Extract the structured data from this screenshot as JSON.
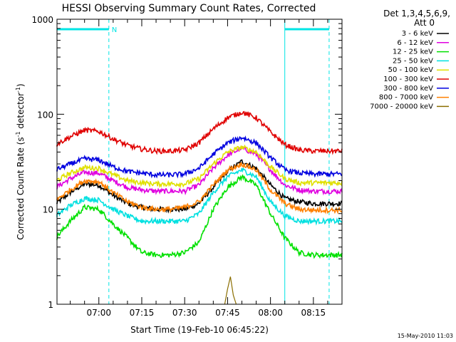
{
  "chart_data": {
    "type": "line",
    "title": "HESSI Observing Summary Count Rates, Corrected",
    "xlabel": "Start Time (19-Feb-10 06:45:22)",
    "ylabel_main": "Corrected Count Rate (s",
    "ylabel_sup1": "-1",
    "ylabel_mid": " detector",
    "ylabel_sup2": "-1",
    "ylabel_end": ")",
    "yscale": "log",
    "ylim": [
      1,
      1000
    ],
    "xlim": [
      "06:45:22",
      "08:25:00"
    ],
    "x_ticks": [
      "07:00",
      "07:15",
      "07:30",
      "07:45",
      "08:00",
      "08:15"
    ],
    "y_ticks": [
      "1",
      "10",
      "100",
      "1000"
    ],
    "grid": false,
    "legend_position": "right",
    "legend_header": [
      "Det 1,3,4,5,6,9,",
      "Att 0"
    ],
    "footer": "15-May-2010 11:03",
    "night_marker": "N",
    "night_periods": [
      {
        "start": "06:45:22",
        "end": "07:03:30"
      },
      {
        "start": "08:05:00",
        "end": "08:20:30"
      }
    ],
    "series": [
      {
        "name": "3 - 6 keV",
        "color": "#000000",
        "values": [
          [
            "06:45",
            11.5
          ],
          [
            "06:50",
            15
          ],
          [
            "06:55",
            18.5
          ],
          [
            "07:00",
            18
          ],
          [
            "07:05",
            14
          ],
          [
            "07:10",
            11.5
          ],
          [
            "07:15",
            10.5
          ],
          [
            "07:20",
            10
          ],
          [
            "07:25",
            10
          ],
          [
            "07:30",
            10
          ],
          [
            "07:35",
            11.5
          ],
          [
            "07:40",
            17
          ],
          [
            "07:45",
            25
          ],
          [
            "07:50",
            32
          ],
          [
            "07:55",
            27
          ],
          [
            "08:00",
            18
          ],
          [
            "08:05",
            13
          ],
          [
            "08:10",
            12
          ],
          [
            "08:15",
            11.5
          ],
          [
            "08:20",
            11.5
          ],
          [
            "08:25",
            11.5
          ]
        ]
      },
      {
        "name": "6 - 12 keV",
        "color": "#e000e0",
        "values": [
          [
            "06:45",
            17
          ],
          [
            "06:50",
            21
          ],
          [
            "06:55",
            24.5
          ],
          [
            "07:00",
            24
          ],
          [
            "07:05",
            20
          ],
          [
            "07:10",
            17
          ],
          [
            "07:15",
            16
          ],
          [
            "07:20",
            15.5
          ],
          [
            "07:25",
            15.5
          ],
          [
            "07:30",
            15.5
          ],
          [
            "07:35",
            18
          ],
          [
            "07:40",
            27
          ],
          [
            "07:45",
            37
          ],
          [
            "07:50",
            44
          ],
          [
            "07:55",
            38
          ],
          [
            "08:00",
            26
          ],
          [
            "08:05",
            18
          ],
          [
            "08:10",
            16
          ],
          [
            "08:15",
            15.5
          ],
          [
            "08:20",
            15.5
          ],
          [
            "08:25",
            15.5
          ]
        ]
      },
      {
        "name": "12 - 25 keV",
        "color": "#00e000",
        "values": [
          [
            "06:45",
            5
          ],
          [
            "06:50",
            7.5
          ],
          [
            "06:55",
            10.5
          ],
          [
            "07:00",
            10
          ],
          [
            "07:05",
            7
          ],
          [
            "07:10",
            5
          ],
          [
            "07:15",
            3.5
          ],
          [
            "07:20",
            3.3
          ],
          [
            "07:25",
            3.3
          ],
          [
            "07:30",
            3.5
          ],
          [
            "07:35",
            4.5
          ],
          [
            "07:40",
            10
          ],
          [
            "07:45",
            17
          ],
          [
            "07:50",
            22
          ],
          [
            "07:55",
            18
          ],
          [
            "08:00",
            9
          ],
          [
            "08:05",
            5
          ],
          [
            "08:10",
            3.5
          ],
          [
            "08:15",
            3.3
          ],
          [
            "08:20",
            3.3
          ],
          [
            "08:25",
            3.3
          ]
        ]
      },
      {
        "name": "25 - 50 keV",
        "color": "#00e0e0",
        "values": [
          [
            "06:45",
            8.5
          ],
          [
            "06:50",
            11
          ],
          [
            "06:55",
            13
          ],
          [
            "07:00",
            12.5
          ],
          [
            "07:05",
            10
          ],
          [
            "07:10",
            8.5
          ],
          [
            "07:15",
            7.5
          ],
          [
            "07:20",
            7.5
          ],
          [
            "07:25",
            7.5
          ],
          [
            "07:30",
            7.5
          ],
          [
            "07:35",
            9
          ],
          [
            "07:40",
            15
          ],
          [
            "07:45",
            22
          ],
          [
            "07:50",
            26
          ],
          [
            "07:55",
            22
          ],
          [
            "08:00",
            12
          ],
          [
            "08:05",
            8.5
          ],
          [
            "08:10",
            7.5
          ],
          [
            "08:15",
            7.5
          ],
          [
            "08:20",
            7.5
          ],
          [
            "08:25",
            7.5
          ]
        ]
      },
      {
        "name": "50 - 100 keV",
        "color": "#e0e000",
        "values": [
          [
            "06:45",
            20
          ],
          [
            "06:50",
            24
          ],
          [
            "06:55",
            27.5
          ],
          [
            "07:00",
            27
          ],
          [
            "07:05",
            23
          ],
          [
            "07:10",
            20
          ],
          [
            "07:15",
            19
          ],
          [
            "07:20",
            18.5
          ],
          [
            "07:25",
            18.5
          ],
          [
            "07:30",
            18.5
          ],
          [
            "07:35",
            21
          ],
          [
            "07:40",
            30
          ],
          [
            "07:45",
            40
          ],
          [
            "07:50",
            45
          ],
          [
            "07:55",
            40
          ],
          [
            "08:00",
            28
          ],
          [
            "08:05",
            21
          ],
          [
            "08:10",
            19
          ],
          [
            "08:15",
            19
          ],
          [
            "08:20",
            19
          ],
          [
            "08:25",
            19
          ]
        ]
      },
      {
        "name": "100 - 300 keV",
        "color": "#e00000",
        "values": [
          [
            "06:45",
            48
          ],
          [
            "06:50",
            58
          ],
          [
            "06:55",
            68
          ],
          [
            "07:00",
            66
          ],
          [
            "07:05",
            55
          ],
          [
            "07:10",
            47
          ],
          [
            "07:15",
            43
          ],
          [
            "07:20",
            41
          ],
          [
            "07:25",
            41
          ],
          [
            "07:30",
            42
          ],
          [
            "07:35",
            50
          ],
          [
            "07:40",
            70
          ],
          [
            "07:45",
            92
          ],
          [
            "07:50",
            105
          ],
          [
            "07:55",
            92
          ],
          [
            "08:00",
            65
          ],
          [
            "08:05",
            48
          ],
          [
            "08:10",
            42
          ],
          [
            "08:15",
            41
          ],
          [
            "08:20",
            41
          ],
          [
            "08:25",
            41
          ]
        ]
      },
      {
        "name": "300 - 800 keV",
        "color": "#0000e0",
        "values": [
          [
            "06:45",
            26
          ],
          [
            "06:50",
            30
          ],
          [
            "06:55",
            34
          ],
          [
            "07:00",
            33
          ],
          [
            "07:05",
            28
          ],
          [
            "07:10",
            25
          ],
          [
            "07:15",
            24
          ],
          [
            "07:20",
            23
          ],
          [
            "07:25",
            23
          ],
          [
            "07:30",
            23.5
          ],
          [
            "07:35",
            27
          ],
          [
            "07:40",
            38
          ],
          [
            "07:45",
            50
          ],
          [
            "07:50",
            57
          ],
          [
            "07:55",
            50
          ],
          [
            "08:00",
            35
          ],
          [
            "08:05",
            26
          ],
          [
            "08:10",
            24
          ],
          [
            "08:15",
            23.5
          ],
          [
            "08:20",
            23.5
          ],
          [
            "08:25",
            23.5
          ]
        ]
      },
      {
        "name": "800 - 7000 keV",
        "color": "#ff8000",
        "values": [
          [
            "06:45",
            12.5
          ],
          [
            "06:50",
            16
          ],
          [
            "06:55",
            20
          ],
          [
            "07:00",
            19.5
          ],
          [
            "07:05",
            15
          ],
          [
            "07:10",
            12
          ],
          [
            "07:15",
            10.5
          ],
          [
            "07:20",
            10
          ],
          [
            "07:25",
            10
          ],
          [
            "07:30",
            10.5
          ],
          [
            "07:35",
            12
          ],
          [
            "07:40",
            18
          ],
          [
            "07:45",
            26
          ],
          [
            "07:50",
            30
          ],
          [
            "07:55",
            26
          ],
          [
            "08:00",
            16
          ],
          [
            "08:05",
            11.5
          ],
          [
            "08:10",
            10
          ],
          [
            "08:15",
            9.8
          ],
          [
            "08:20",
            9.8
          ],
          [
            "08:25",
            9.8
          ]
        ]
      },
      {
        "name": "7000 - 20000 keV",
        "color": "#8b6e00",
        "values": [
          [
            "07:44",
            1
          ],
          [
            "07:45",
            1.45
          ],
          [
            "07:46",
            1.95
          ],
          [
            "07:47",
            1.25
          ],
          [
            "07:48",
            1
          ]
        ]
      }
    ]
  }
}
